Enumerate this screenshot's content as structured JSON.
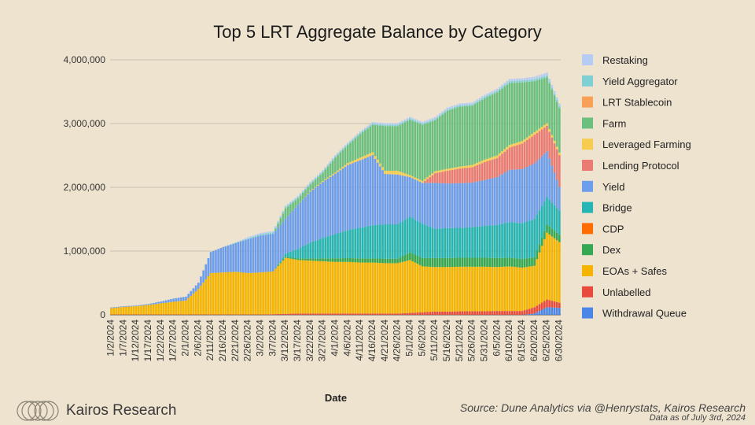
{
  "chart_data": {
    "type": "bar",
    "stacked": true,
    "title": "Top 5 LRT Aggregate Balance by Category",
    "xlabel": "Date",
    "ylabel": "",
    "ylim": [
      0,
      4000000
    ],
    "yticks": [
      "0",
      "1,000,000",
      "2,000,000",
      "3,000,000",
      "4,000,000"
    ],
    "ytick_values": [
      0,
      1000000,
      2000000,
      3000000,
      4000000
    ],
    "xtick_labels": [
      "1/2/2024",
      "1/7/2024",
      "1/12/2024",
      "1/17/2024",
      "1/22/2024",
      "1/27/2024",
      "2/1/2024",
      "2/6/2024",
      "2/11/2024",
      "2/16/2024",
      "2/21/2024",
      "2/26/2024",
      "3/2/2024",
      "3/7/2024",
      "3/12/2024",
      "3/17/2024",
      "3/22/2024",
      "3/27/2024",
      "4/1/2024",
      "4/6/2024",
      "4/11/2024",
      "4/16/2024",
      "4/21/2024",
      "4/26/2024",
      "5/1/2024",
      "5/6/2024",
      "5/11/2024",
      "5/16/2024",
      "5/21/2024",
      "5/26/2024",
      "5/31/2024",
      "6/5/2024",
      "6/10/2024",
      "6/15/2024",
      "6/20/2024",
      "6/25/2024",
      "6/30/2024"
    ],
    "legend_position": "right",
    "series": [
      {
        "name": "Withdrawal Queue",
        "color": "#4a86e8",
        "values": [
          0,
          0,
          0,
          0,
          0,
          0,
          0,
          0,
          0,
          0,
          0,
          0,
          0,
          0,
          0,
          0,
          0,
          0,
          0,
          0,
          0,
          0,
          0,
          0,
          0,
          0,
          0,
          0,
          0,
          0,
          0,
          0,
          0,
          0,
          20000,
          120000,
          110000
        ]
      },
      {
        "name": "Unlabelled",
        "color": "#e84a3c",
        "values": [
          5000,
          5000,
          5000,
          5000,
          5000,
          5000,
          5000,
          5000,
          5000,
          5000,
          5000,
          5000,
          5000,
          10000,
          15000,
          20000,
          20000,
          20000,
          20000,
          20000,
          20000,
          20000,
          20000,
          20000,
          30000,
          40000,
          50000,
          50000,
          55000,
          55000,
          55000,
          60000,
          60000,
          60000,
          100000,
          120000,
          80000
        ]
      },
      {
        "name": "EOAs + Safes",
        "color": "#f4b400",
        "values": [
          100000,
          120000,
          130000,
          150000,
          175000,
          200000,
          220000,
          400000,
          650000,
          660000,
          670000,
          650000,
          660000,
          670000,
          880000,
          840000,
          830000,
          820000,
          810000,
          810000,
          800000,
          800000,
          790000,
          790000,
          830000,
          720000,
          700000,
          700000,
          700000,
          700000,
          700000,
          690000,
          700000,
          680000,
          650000,
          1050000,
          950000
        ]
      },
      {
        "name": "Dex",
        "color": "#34a853",
        "values": [
          0,
          0,
          0,
          0,
          0,
          0,
          0,
          0,
          0,
          0,
          0,
          0,
          0,
          0,
          15000,
          25000,
          35000,
          45000,
          55000,
          60000,
          65000,
          65000,
          70000,
          70000,
          120000,
          130000,
          140000,
          140000,
          140000,
          140000,
          140000,
          140000,
          135000,
          135000,
          135000,
          125000,
          115000
        ]
      },
      {
        "name": "CDP",
        "color": "#ff6d01",
        "values": [
          0,
          0,
          0,
          0,
          0,
          0,
          0,
          0,
          0,
          0,
          0,
          0,
          0,
          0,
          0,
          0,
          0,
          0,
          0,
          0,
          0,
          0,
          0,
          0,
          0,
          0,
          0,
          0,
          0,
          0,
          0,
          0,
          0,
          0,
          0,
          0,
          0
        ]
      },
      {
        "name": "Bridge",
        "color": "#26b5b5",
        "values": [
          0,
          0,
          0,
          0,
          0,
          0,
          0,
          0,
          0,
          0,
          0,
          0,
          0,
          0,
          50000,
          150000,
          250000,
          320000,
          380000,
          440000,
          480000,
          520000,
          540000,
          540000,
          560000,
          540000,
          460000,
          470000,
          470000,
          480000,
          500000,
          520000,
          560000,
          560000,
          600000,
          430000,
          380000
        ]
      },
      {
        "name": "Yield",
        "color": "#6d9eeb",
        "values": [
          10000,
          10000,
          10000,
          15000,
          30000,
          50000,
          60000,
          100000,
          330000,
          400000,
          450000,
          530000,
          580000,
          590000,
          550000,
          690000,
          800000,
          880000,
          950000,
          1020000,
          1060000,
          1100000,
          790000,
          780000,
          620000,
          640000,
          720000,
          700000,
          700000,
          700000,
          720000,
          750000,
          820000,
          850000,
          870000,
          720000,
          370000
        ]
      },
      {
        "name": "Lending Protocol",
        "color": "#ea7b73",
        "values": [
          0,
          0,
          0,
          0,
          0,
          0,
          0,
          0,
          0,
          0,
          0,
          0,
          0,
          0,
          0,
          0,
          0,
          0,
          0,
          0,
          0,
          0,
          0,
          0,
          0,
          0,
          150000,
          200000,
          230000,
          240000,
          280000,
          300000,
          350000,
          400000,
          450000,
          400000,
          500000
        ]
      },
      {
        "name": "Leveraged Farming",
        "color": "#f7cb4d",
        "values": [
          0,
          0,
          0,
          0,
          0,
          0,
          0,
          0,
          0,
          0,
          0,
          0,
          0,
          0,
          0,
          0,
          10000,
          15000,
          20000,
          30000,
          40000,
          45000,
          50000,
          60000,
          30000,
          30000,
          30000,
          30000,
          30000,
          35000,
          40000,
          40000,
          40000,
          40000,
          40000,
          40000,
          40000
        ]
      },
      {
        "name": "Farm",
        "color": "#6cc07f",
        "values": [
          0,
          0,
          0,
          0,
          0,
          0,
          0,
          0,
          0,
          0,
          0,
          0,
          0,
          0,
          160000,
          100000,
          100000,
          130000,
          230000,
          280000,
          370000,
          430000,
          700000,
          700000,
          870000,
          880000,
          800000,
          910000,
          940000,
          930000,
          960000,
          990000,
          970000,
          920000,
          800000,
          720000,
          700000
        ]
      },
      {
        "name": "LRT Stablecoin",
        "color": "#f8a156",
        "values": [
          0,
          0,
          0,
          0,
          0,
          0,
          0,
          0,
          0,
          0,
          0,
          0,
          0,
          0,
          0,
          0,
          0,
          0,
          0,
          0,
          0,
          0,
          0,
          0,
          0,
          0,
          0,
          0,
          0,
          0,
          0,
          0,
          0,
          0,
          0,
          0,
          0
        ]
      },
      {
        "name": "Yield Aggregator",
        "color": "#7fd0d4",
        "values": [
          0,
          0,
          0,
          0,
          0,
          0,
          0,
          0,
          0,
          0,
          10000,
          15000,
          20000,
          25000,
          20000,
          20000,
          20000,
          20000,
          20000,
          20000,
          20000,
          20000,
          20000,
          20000,
          20000,
          20000,
          20000,
          20000,
          20000,
          20000,
          25000,
          25000,
          30000,
          30000,
          30000,
          30000,
          30000
        ]
      },
      {
        "name": "Restaking",
        "color": "#b5cdf5",
        "values": [
          0,
          0,
          0,
          0,
          0,
          0,
          0,
          0,
          0,
          0,
          0,
          20000,
          20000,
          20000,
          20000,
          20000,
          20000,
          20000,
          20000,
          20000,
          20000,
          25000,
          25000,
          25000,
          25000,
          25000,
          30000,
          30000,
          30000,
          30000,
          30000,
          30000,
          35000,
          35000,
          40000,
          45000,
          40000
        ]
      }
    ],
    "legend_order": [
      "Restaking",
      "Yield Aggregator",
      "LRT Stablecoin",
      "Farm",
      "Leveraged Farming",
      "Lending Protocol",
      "Yield",
      "Bridge",
      "CDP",
      "Dex",
      "EOAs + Safes",
      "Unlabelled",
      "Withdrawal Queue"
    ]
  },
  "footer": {
    "brand": "Kairos Research",
    "source": "Source: Dune Analytics via @Henrystats, Kairos Research",
    "note": "Data as of July 3rd, 2024"
  }
}
